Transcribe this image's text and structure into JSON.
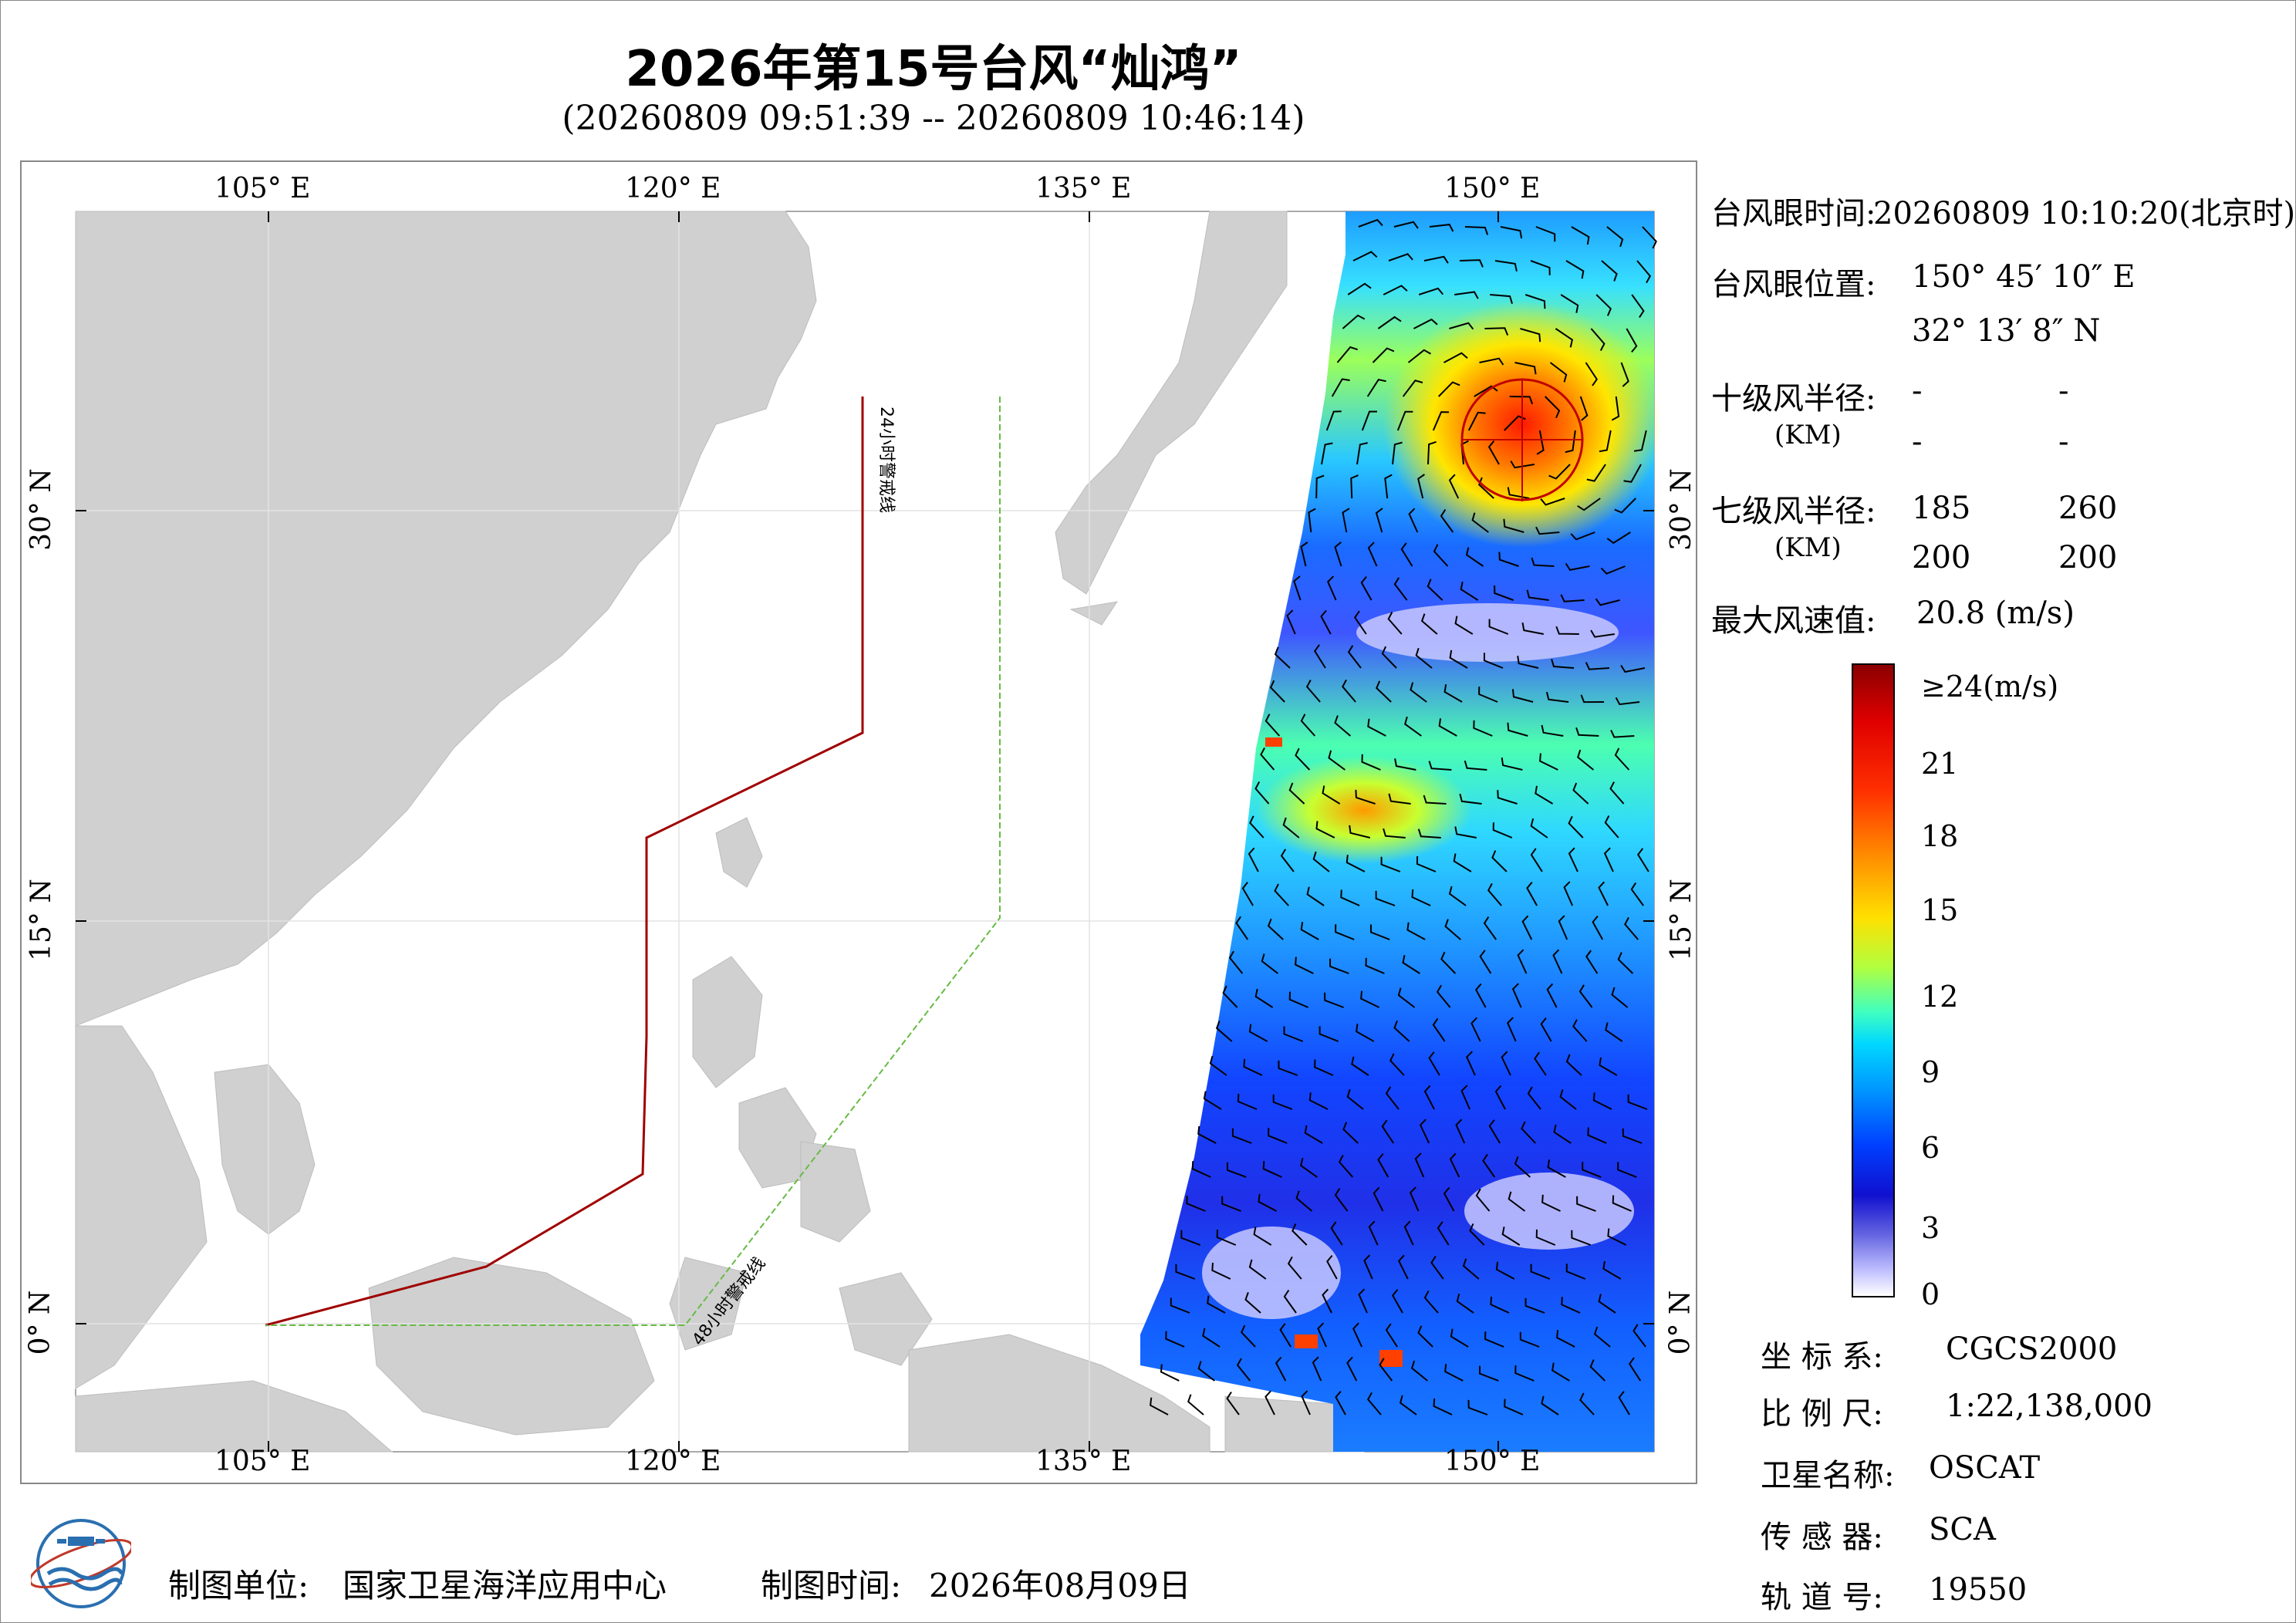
{
  "title": "2026年第15号台风“灿鸿”",
  "subtitle": "(20260809 09:51:39 -- 20260809 10:46:14)",
  "map": {
    "lon_labels": [
      "105° E",
      "120° E",
      "135° E",
      "150° E"
    ],
    "lat_labels": [
      "30° N",
      "15° N",
      "0° N"
    ],
    "warning_24h": "24小时警戒线",
    "warning_48h": "48小时警戒线"
  },
  "info": {
    "eye_time_label": "台风眼时间:",
    "eye_time_value": "20260809 10:10:20(北京时)",
    "eye_pos_label": "台风眼位置:",
    "eye_lon": "150° 45′ 10″ E",
    "eye_lat": "32° 13′ 8″ N",
    "r10_label": "十级风半径:",
    "r10_unit": "(KM)",
    "r10_values": [
      "-",
      "-",
      "-",
      "-"
    ],
    "r7_label": "七级风半径:",
    "r7_unit": "(KM)",
    "r7_values": [
      "185",
      "260",
      "200",
      "200"
    ],
    "max_wind_label": "最大风速值:",
    "max_wind_value": "20.8  (m/s)"
  },
  "colorbar": {
    "labels": [
      "≥24(m/s)",
      "21",
      "18",
      "15",
      "12",
      "9",
      "6",
      "3",
      "0"
    ],
    "colors": [
      "#8b0000",
      "#e00000",
      "#ff8a00",
      "#ffe000",
      "#40ffc0",
      "#00d8ff",
      "#0040ff",
      "#6060e0",
      "#ffffff"
    ]
  },
  "meta": {
    "crs_label": "坐 标 系:",
    "crs_value": "CGCS2000",
    "scale_label": "比 例 尺:",
    "scale_value": "1:22,138,000",
    "satellite_label": "卫星名称:",
    "satellite_value": "OSCAT",
    "sensor_label": "传 感 器:",
    "sensor_value": "SCA",
    "orbit_label": "轨 道 号:",
    "orbit_value": "19550"
  },
  "footer": {
    "maker_label": "制图单位:",
    "maker_value": "国家卫星海洋应用中心",
    "date_label": "制图时间:",
    "date_value": "2026年08月09日"
  }
}
